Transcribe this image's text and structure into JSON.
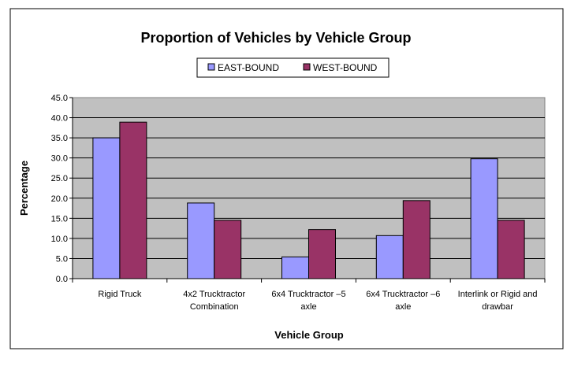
{
  "chart_data": {
    "type": "bar",
    "title": "Proportion of Vehicles by Vehicle Group",
    "xlabel": "Vehicle Group",
    "ylabel": "Percentage",
    "ylim": [
      0,
      45
    ],
    "yticks": [
      "0.0",
      "5.0",
      "10.0",
      "15.0",
      "20.0",
      "25.0",
      "30.0",
      "35.0",
      "40.0",
      "45.0"
    ],
    "grid": true,
    "legend_position": "top-center",
    "categories": [
      [
        "Rigid Truck"
      ],
      [
        "4x2 Trucktractor",
        "Combination"
      ],
      [
        "6x4 Trucktractor –5",
        "axle"
      ],
      [
        "6x4 Trucktractor –6",
        "axle"
      ],
      [
        "Interlink or Rigid and",
        "drawbar"
      ]
    ],
    "series": [
      {
        "name": "EAST-BOUND",
        "color": "#9999FF",
        "values": [
          35.0,
          18.8,
          5.4,
          10.7,
          29.8
        ]
      },
      {
        "name": "WEST-BOUND",
        "color": "#993366",
        "values": [
          38.9,
          14.5,
          12.2,
          19.4,
          14.5
        ]
      }
    ],
    "plot_background": "#C0C0C0"
  }
}
